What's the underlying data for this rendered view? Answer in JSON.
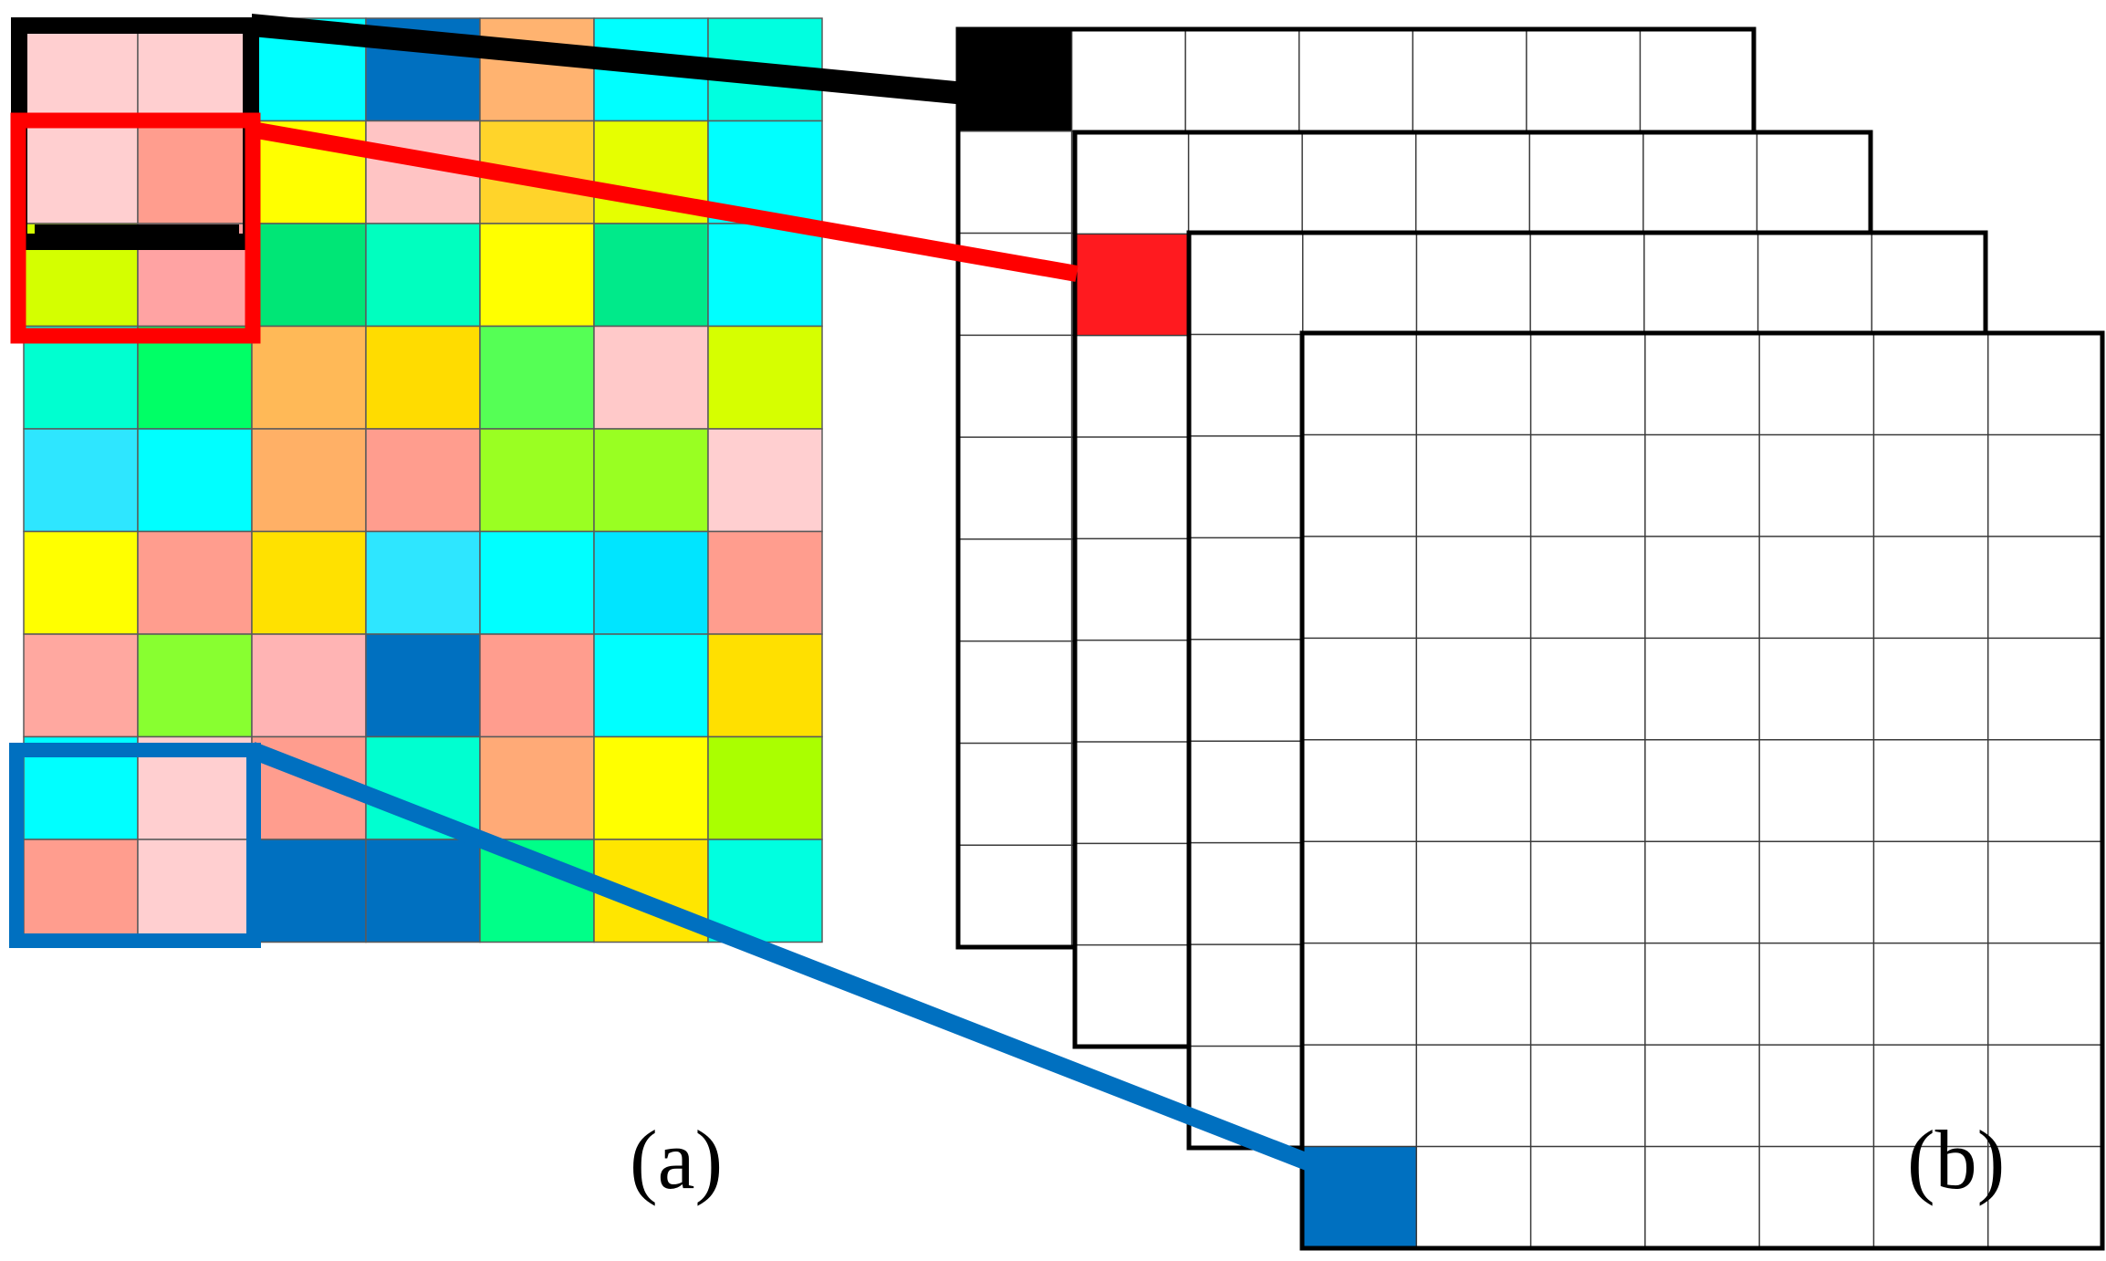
{
  "captions": {
    "a": "(a)",
    "b": "(b)"
  },
  "input_grid": {
    "rows": 9,
    "cols": 7,
    "cell_colors": [
      [
        "#ffcfd0",
        "#ffcfd0",
        "#00ffff",
        "#0070c0",
        "#ffb370",
        "#00ffff",
        "#00ffe0"
      ],
      [
        "#ffcfd0",
        "#ff9d8e",
        "#ffff00",
        "#ffc4c4",
        "#ffd42a",
        "#e6ff00",
        "#00ffff"
      ],
      [
        "#d4ff00",
        "#ffa3a3",
        "#00e676",
        "#00ffbf",
        "#ffff00",
        "#00ea8a",
        "#00ffff"
      ],
      [
        "#00ffd0",
        "#00ff66",
        "#ffb957",
        "#ffdc00",
        "#55ff55",
        "#ffc9c9",
        "#d6ff00"
      ],
      [
        "#2ee6ff",
        "#00ffff",
        "#ffb066",
        "#ff9d8e",
        "#9aff22",
        "#99ff22",
        "#ffcfd0"
      ],
      [
        "#ffff00",
        "#ff9d8e",
        "#ffe100",
        "#2ee6ff",
        "#00ffff",
        "#00e5ff",
        "#ff9d8e"
      ],
      [
        "#ffa8a0",
        "#88ff30",
        "#ffb4b4",
        "#0070c0",
        "#ff9d8e",
        "#00ffff",
        "#ffe000"
      ],
      [
        "#00ffff",
        "#ffcfd0",
        "#ff9d8e",
        "#00ffd0",
        "#ffaa77",
        "#ffff00",
        "#aaff00"
      ],
      [
        "#ff9d8e",
        "#ffcfd0",
        "#0070c0",
        "#0070c0",
        "#00ff88",
        "#ffe600",
        "#00ffe0"
      ]
    ]
  },
  "feature_maps": {
    "count": 4,
    "rows": 9,
    "cols": 7,
    "highlight_colors": [
      "#000000",
      "#ff1a1f",
      "#0070c0"
    ]
  },
  "connector_colors": {
    "black": "#000000",
    "red": "#ff0000",
    "blue": "#0070c0"
  }
}
